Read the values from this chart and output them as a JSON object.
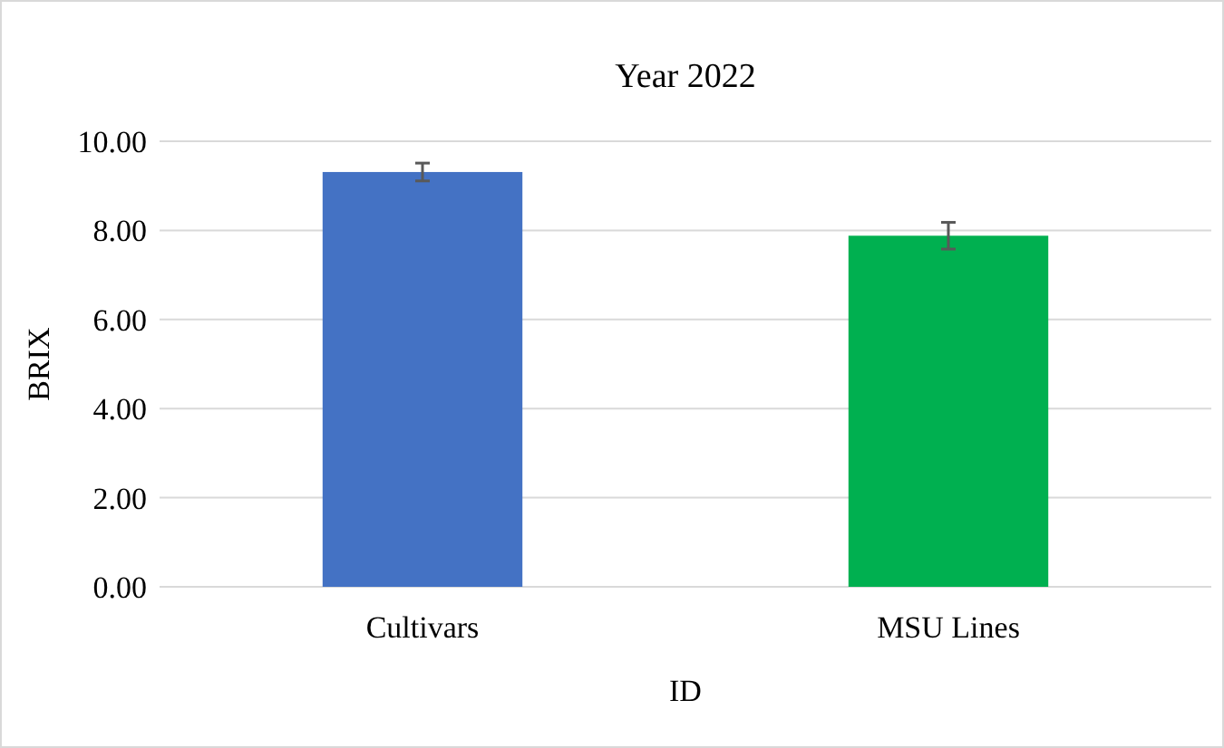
{
  "chart_data": {
    "type": "bar",
    "title": "Year 2022",
    "xlabel": "ID",
    "ylabel": "BRIX",
    "categories": [
      "Cultivars",
      "MSU Lines"
    ],
    "values": [
      9.31,
      7.88
    ],
    "errors": [
      0.2,
      0.3
    ],
    "colors": [
      "#4472c4",
      "#00b050"
    ],
    "ylim": [
      0,
      10
    ],
    "yticks": [
      {
        "value": 0,
        "label": "0.00"
      },
      {
        "value": 2,
        "label": "2.00"
      },
      {
        "value": 4,
        "label": "4.00"
      },
      {
        "value": 6,
        "label": "6.00"
      },
      {
        "value": 8,
        "label": "8.00"
      },
      {
        "value": 10,
        "label": "10.00"
      }
    ],
    "grid": "y"
  }
}
